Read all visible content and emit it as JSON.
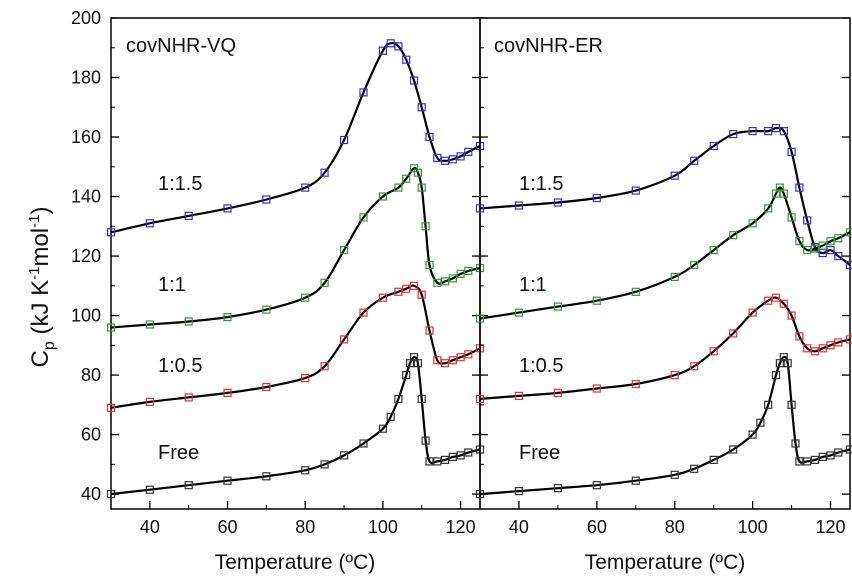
{
  "figure": {
    "ylabel": "C",
    "ylabel_sub": "p",
    "ylabel_unit_parts": [
      " (kJ K",
      "-1",
      "mol",
      "-1",
      ")"
    ],
    "xlabel": "Temperature (ºC)"
  },
  "chart_data": [
    {
      "type": "scatter",
      "title": "covNHR-VQ",
      "xlabel": "Temperature (ºC)",
      "ylabel": "Cp (kJ K-1mol-1)",
      "xlim": [
        30,
        125
      ],
      "ylim": [
        35,
        200
      ],
      "xticks": [
        40,
        60,
        80,
        100,
        120
      ],
      "yticks": [
        40,
        60,
        80,
        100,
        120,
        140,
        160,
        180,
        200
      ],
      "grid": false,
      "fit_line_color": "#000000",
      "series": [
        {
          "name": "1:1.5",
          "color": "#3333cc",
          "x": [
            30,
            40,
            50,
            60,
            70,
            80,
            85,
            90,
            95,
            100,
            102,
            104,
            106,
            108,
            110,
            112,
            114,
            116,
            118,
            120,
            122,
            125
          ],
          "y": [
            128,
            131,
            133.5,
            136,
            139,
            143,
            148,
            159,
            175,
            189,
            191.5,
            190.5,
            186,
            179,
            170,
            160,
            153,
            152,
            152.5,
            153.5,
            155,
            157
          ]
        },
        {
          "name": "1:1",
          "color": "#339933",
          "x": [
            30,
            40,
            50,
            60,
            70,
            80,
            85,
            90,
            95,
            100,
            104,
            106,
            108,
            109,
            110,
            111,
            112,
            114,
            116,
            118,
            120,
            122,
            125
          ],
          "y": [
            96,
            97,
            98,
            99.5,
            102,
            106,
            111,
            122,
            133,
            140,
            143,
            146,
            149.5,
            148,
            143,
            130,
            117,
            111,
            111.5,
            112.5,
            114,
            115,
            116
          ]
        },
        {
          "name": "1:0.5",
          "color": "#dd3333",
          "x": [
            30,
            40,
            50,
            60,
            70,
            80,
            85,
            90,
            95,
            100,
            104,
            106,
            108,
            110,
            112,
            114,
            116,
            118,
            120,
            122,
            125
          ],
          "y": [
            69,
            71,
            72.5,
            74,
            76,
            79,
            83,
            92,
            101,
            106,
            108,
            109,
            110,
            107,
            95,
            85,
            84,
            85,
            86,
            87,
            89
          ]
        },
        {
          "name": "Free",
          "color": "#333333",
          "x": [
            30,
            40,
            50,
            60,
            70,
            80,
            85,
            90,
            95,
            100,
            102,
            104,
            106,
            107,
            108,
            109,
            110,
            111,
            112,
            114,
            116,
            118,
            120,
            122,
            125
          ],
          "y": [
            40,
            41.5,
            43,
            44.5,
            46,
            48,
            50,
            53,
            57,
            62,
            66,
            72,
            80,
            84,
            86,
            84,
            72,
            58,
            51,
            51,
            51.5,
            52.5,
            53,
            54,
            55
          ]
        }
      ],
      "labels": [
        "1:1.5",
        "1:1",
        "1:0.5",
        "Free"
      ]
    },
    {
      "type": "scatter",
      "title": "covNHR-ER",
      "xlabel": "Temperature (ºC)",
      "ylabel": "Cp (kJ K-1mol-1)",
      "xlim": [
        30,
        125
      ],
      "ylim": [
        35,
        200
      ],
      "xticks": [
        40,
        60,
        80,
        100,
        120
      ],
      "yticks": [],
      "grid": false,
      "fit_line_color": "#000000",
      "series": [
        {
          "name": "1:1.5",
          "color": "#3333cc",
          "x": [
            30,
            40,
            50,
            60,
            70,
            80,
            85,
            90,
            95,
            100,
            104,
            106,
            108,
            110,
            112,
            114,
            116,
            118,
            120,
            122,
            125
          ],
          "y": [
            136,
            137,
            138,
            139.5,
            142,
            147,
            152,
            157,
            161,
            162,
            162,
            163,
            162,
            155,
            143,
            132,
            123,
            121,
            122,
            120,
            117
          ]
        },
        {
          "name": "1:1",
          "color": "#339933",
          "x": [
            30,
            40,
            50,
            60,
            70,
            80,
            85,
            90,
            95,
            100,
            104,
            106,
            107,
            108,
            110,
            112,
            114,
            116,
            118,
            120,
            122,
            125
          ],
          "y": [
            99,
            101,
            103,
            105,
            108,
            113,
            117,
            122,
            127,
            131,
            136,
            141,
            143,
            141,
            133,
            125,
            122,
            122.5,
            123.5,
            125,
            126,
            128
          ]
        },
        {
          "name": "1:0.5",
          "color": "#dd3333",
          "x": [
            30,
            40,
            50,
            60,
            70,
            80,
            85,
            90,
            95,
            100,
            104,
            106,
            108,
            110,
            112,
            114,
            116,
            118,
            120,
            122,
            125
          ],
          "y": [
            72,
            73,
            74,
            75.5,
            77,
            80,
            83,
            88,
            94,
            101,
            105,
            106,
            104,
            100,
            93,
            89,
            88,
            89,
            90,
            91,
            92
          ]
        },
        {
          "name": "Free",
          "color": "#333333",
          "x": [
            30,
            40,
            50,
            60,
            70,
            80,
            85,
            90,
            95,
            100,
            102,
            104,
            106,
            107,
            108,
            109,
            110,
            111,
            112,
            114,
            116,
            118,
            120,
            122,
            125
          ],
          "y": [
            40,
            41,
            42,
            43,
            44.5,
            46.5,
            48.5,
            51.5,
            55,
            60,
            64,
            70,
            80,
            84,
            86,
            84,
            70,
            57,
            51,
            51,
            51.5,
            52.5,
            53,
            54,
            55
          ]
        }
      ],
      "labels": [
        "1:1.5",
        "1:1",
        "1:0.5",
        "Free"
      ]
    }
  ]
}
